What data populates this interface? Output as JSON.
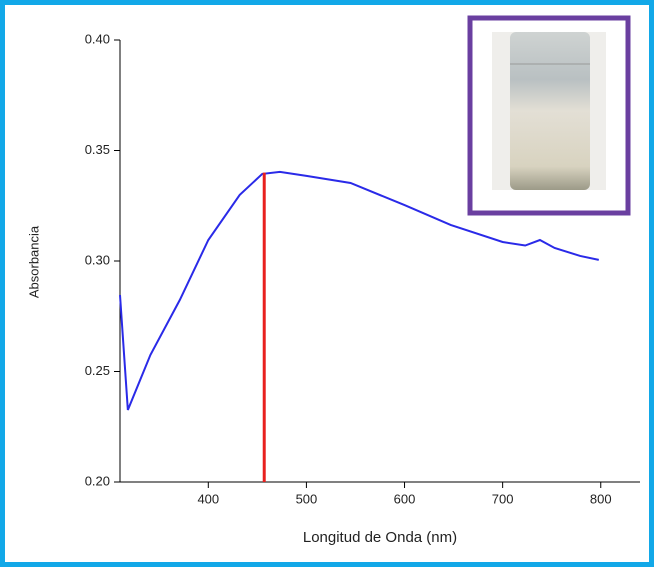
{
  "chart_data": {
    "type": "line",
    "xlabel": "Longitud de Onda (nm)",
    "ylabel": "Absorbancia",
    "x": [
      310,
      318,
      341,
      371,
      400,
      432,
      455,
      473,
      500,
      545,
      600,
      647,
      700,
      723,
      738,
      753,
      779,
      798
    ],
    "series": [
      {
        "color": "#2a2ae8",
        "values": [
          0.2846,
          0.2326,
          0.2575,
          0.2824,
          0.3095,
          0.3299,
          0.3394,
          0.3403,
          0.3385,
          0.3353,
          0.3253,
          0.3163,
          0.3086,
          0.307,
          0.3095,
          0.3059,
          0.3023,
          0.3005
        ]
      }
    ],
    "vertical_line": {
      "x": 457,
      "y": 0.34,
      "color": "#e8201e"
    },
    "xlim": [
      310,
      840
    ],
    "ylim": [
      0.2,
      0.4
    ],
    "xticks": [
      400,
      500,
      600,
      700,
      800
    ],
    "yticks": [
      {
        "value": 0.2,
        "label": "0.20"
      },
      0.25,
      {
        "value": 0.3,
        "label": "0.30"
      },
      0.35,
      {
        "value": 0.4,
        "label": "0.40"
      }
    ]
  }
}
